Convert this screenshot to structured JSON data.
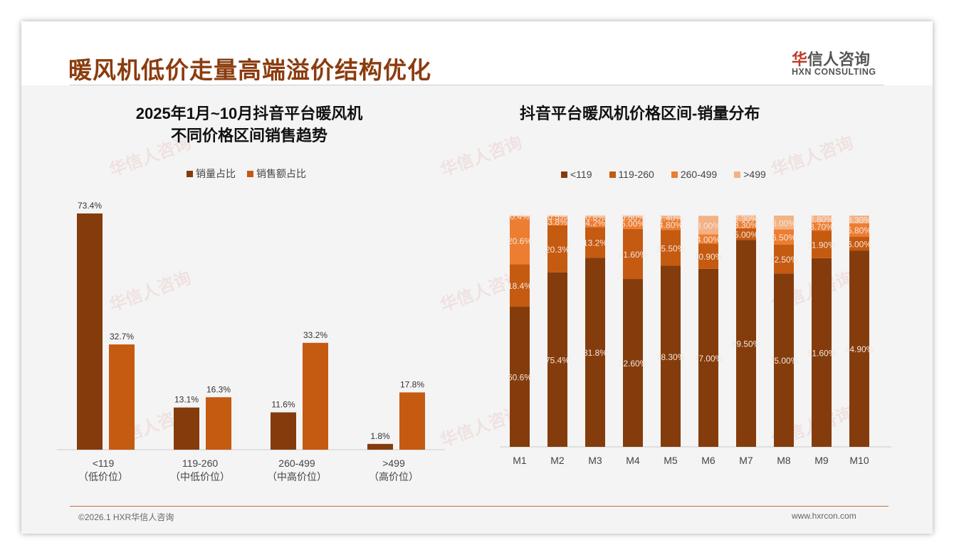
{
  "title": "暖风机低价走量高端溢价结构优化",
  "logo": {
    "cn_mark": "华",
    "cn_rest": "信人咨询",
    "en": "HXN CONSULTING"
  },
  "footer": {
    "left": "©2026.1 HXR华信人咨询",
    "right": "www.hxrcon.com"
  },
  "colors": {
    "c1": "#843c0c",
    "c2": "#c55a11",
    "c3": "#ed7d31",
    "c4": "#f4b183"
  },
  "chart_data": [
    {
      "type": "bar",
      "title_line1": "2025年1月~10月抖音平台暖风机",
      "title_line2": "不同价格区间销售趋势",
      "categories": [
        "<119",
        "119-260",
        "260-499",
        ">499"
      ],
      "sublabels": [
        "（低价位）",
        "（中低价位）",
        "（中高价位）",
        "（高价位）"
      ],
      "series": [
        {
          "name": "销量占比",
          "values": [
            73.4,
            13.1,
            11.6,
            1.8
          ]
        },
        {
          "name": "销售额占比",
          "values": [
            32.7,
            16.3,
            33.2,
            17.8
          ]
        }
      ],
      "ylim": [
        0,
        73.4
      ],
      "legend": "top"
    },
    {
      "type": "bar",
      "stacked": true,
      "title": "抖音平台暖风机价格区间-销量分布",
      "categories": [
        "M1",
        "M2",
        "M3",
        "M4",
        "M5",
        "M6",
        "M7",
        "M8",
        "M9",
        "M10"
      ],
      "series": [
        {
          "name": "<119",
          "values": [
            60.6,
            75.4,
            81.8,
            72.6,
            78.3,
            77.0,
            89.5,
            75.0,
            81.6,
            84.9
          ],
          "labels": [
            "60.6%",
            "75.4%",
            "81.8%",
            "72.60%",
            "78.30%",
            "77.00%",
            "89.50%",
            "75.00%",
            "81.60%",
            "84.90%"
          ]
        },
        {
          "name": "119-260",
          "values": [
            18.4,
            20.3,
            13.2,
            21.6,
            15.5,
            10.9,
            5.0,
            12.5,
            11.9,
            6.0
          ],
          "labels": [
            "18.4%",
            "20.3%",
            "13.2%",
            "21.60%",
            "15.50%",
            "10.90%",
            "5.00%",
            "12.50%",
            "11.90%",
            "6.00%"
          ]
        },
        {
          "name": "260-499",
          "values": [
            20.6,
            3.8,
            4.2,
            5.0,
            4.8,
            4.0,
            3.3,
            6.5,
            3.7,
            5.8
          ],
          "labels": [
            "20.6%",
            "3.8%",
            "4.2%",
            "5.00%",
            "4.80%",
            "4.00%",
            "3.30%",
            "6.50%",
            "3.70%",
            "5.80%"
          ]
        },
        {
          "name": ">499",
          "values": [
            0.4,
            0.5,
            0.8,
            0.8,
            1.4,
            8.0,
            2.3,
            6.0,
            2.8,
            3.3
          ],
          "labels": [
            "0.4%",
            "0.5%",
            "0.8%",
            "0.80%",
            "1.40%",
            "8.00%",
            "2.30%",
            "6.00%",
            "2.80%",
            "3.30%"
          ]
        }
      ],
      "ylim": [
        0,
        100
      ],
      "legend": "top"
    }
  ]
}
